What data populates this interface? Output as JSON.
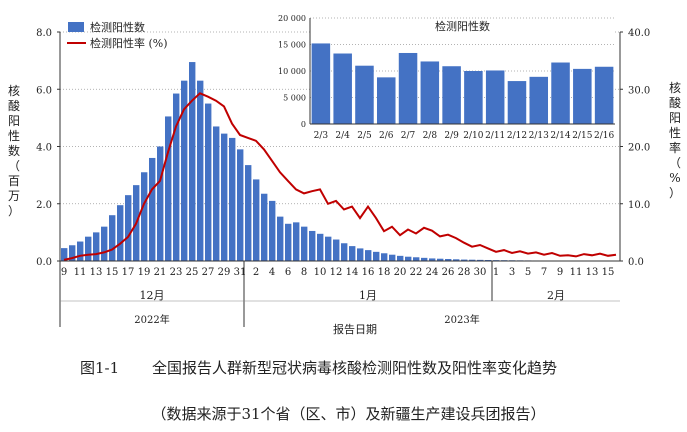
{
  "chart_data": [
    {
      "type": "bar+line",
      "title": "",
      "series": [
        {
          "name": "检测阳性数",
          "type": "bar",
          "axis": "left",
          "values": [
            0.45,
            0.55,
            0.68,
            0.85,
            1.0,
            1.2,
            1.6,
            1.95,
            2.3,
            2.65,
            3.1,
            3.6,
            4.0,
            5.05,
            5.85,
            6.3,
            6.95,
            6.3,
            5.5,
            4.7,
            4.45,
            4.3,
            3.9,
            3.35,
            2.85,
            2.35,
            2.1,
            1.55,
            1.3,
            1.35,
            1.2,
            1.05,
            0.95,
            0.85,
            0.75,
            0.62,
            0.52,
            0.44,
            0.38,
            0.32,
            0.27,
            0.22,
            0.18,
            0.15,
            0.13,
            0.11,
            0.09,
            0.08,
            0.07,
            0.06,
            0.05,
            0.045,
            0.04,
            0.035,
            0.03,
            0.028,
            0.025,
            0.022,
            0.02,
            0.018,
            0.016,
            0.014,
            0.013,
            0.012,
            0.011,
            0.01,
            0.01,
            0.01,
            0.01,
            0.01
          ]
        },
        {
          "name": "检测阳性率 (%)",
          "type": "line",
          "axis": "right",
          "values": [
            0.2,
            0.5,
            0.9,
            1.1,
            1.2,
            1.5,
            2.0,
            3.0,
            4.2,
            6.5,
            10.0,
            12.5,
            14.0,
            19.0,
            23.5,
            26.5,
            28.0,
            29.3,
            28.7,
            28.0,
            27.0,
            24.0,
            22.0,
            21.5,
            21.0,
            19.5,
            17.5,
            15.5,
            14.0,
            12.5,
            11.8,
            12.2,
            12.5,
            10.0,
            10.5,
            9.0,
            9.5,
            7.5,
            9.5,
            7.5,
            5.2,
            6.0,
            4.5,
            5.5,
            4.8,
            5.8,
            5.3,
            4.3,
            4.6,
            4.0,
            3.2,
            2.5,
            2.8,
            2.2,
            1.6,
            1.9,
            1.4,
            1.7,
            1.3,
            1.5,
            1.1,
            1.4,
            0.9,
            1.0,
            0.8,
            1.2,
            1.0,
            1.3,
            0.9,
            1.1
          ]
        }
      ],
      "ylabel_left": "核酸阳性数（百万）",
      "ylabel_right": "核酸阳性率（%）",
      "ylim_left": [
        0,
        8
      ],
      "ylim_right": [
        0,
        40
      ],
      "yticks_left": [
        "0.0",
        "2.0",
        "4.0",
        "6.0",
        "8.0"
      ],
      "yticks_right": [
        "0.0",
        "10.0",
        "20.0",
        "30.0",
        "40.0"
      ],
      "x_tick_labels": [
        "9",
        "11",
        "13",
        "15",
        "17",
        "19",
        "21",
        "23",
        "25",
        "27",
        "29",
        "31",
        "2",
        "4",
        "6",
        "8",
        "10",
        "12",
        "14",
        "16",
        "18",
        "20",
        "22",
        "24",
        "26",
        "28",
        "30",
        "1",
        "3",
        "5",
        "7",
        "9",
        "11",
        "13",
        "15"
      ],
      "x_tick_start_day": 0,
      "x_tick_step_days": 2,
      "months": [
        "12月",
        "1月",
        "2月"
      ],
      "years": [
        "2022年",
        "2023年"
      ],
      "xlabel": "报告日期",
      "legend_position": "top-left",
      "colors": {
        "bar": "#4472c4",
        "line": "#c00000"
      }
    },
    {
      "type": "bar",
      "title": "检测阳性数",
      "categories": [
        "2/3",
        "2/4",
        "2/5",
        "2/6",
        "2/7",
        "2/8",
        "2/9",
        "2/10",
        "2/11",
        "2/12",
        "2/13",
        "2/14",
        "2/15",
        "2/16"
      ],
      "values": [
        15200,
        13300,
        11000,
        8800,
        13400,
        11800,
        10900,
        10000,
        10100,
        8100,
        8900,
        11600,
        10400,
        10800
      ],
      "ylim": [
        0,
        20000
      ],
      "yticks": [
        "0",
        "5 000",
        "10 000",
        "15 000",
        "20 000"
      ],
      "colors": {
        "bar": "#4472c4"
      }
    }
  ],
  "caption": {
    "figure_no": "图1-1",
    "title": "全国报告人群新型冠状病毒核酸检测阳性数及阳性率变化趋势",
    "note": "（数据来源于31个省（区、市）及新疆生产建设兵团报告）"
  }
}
